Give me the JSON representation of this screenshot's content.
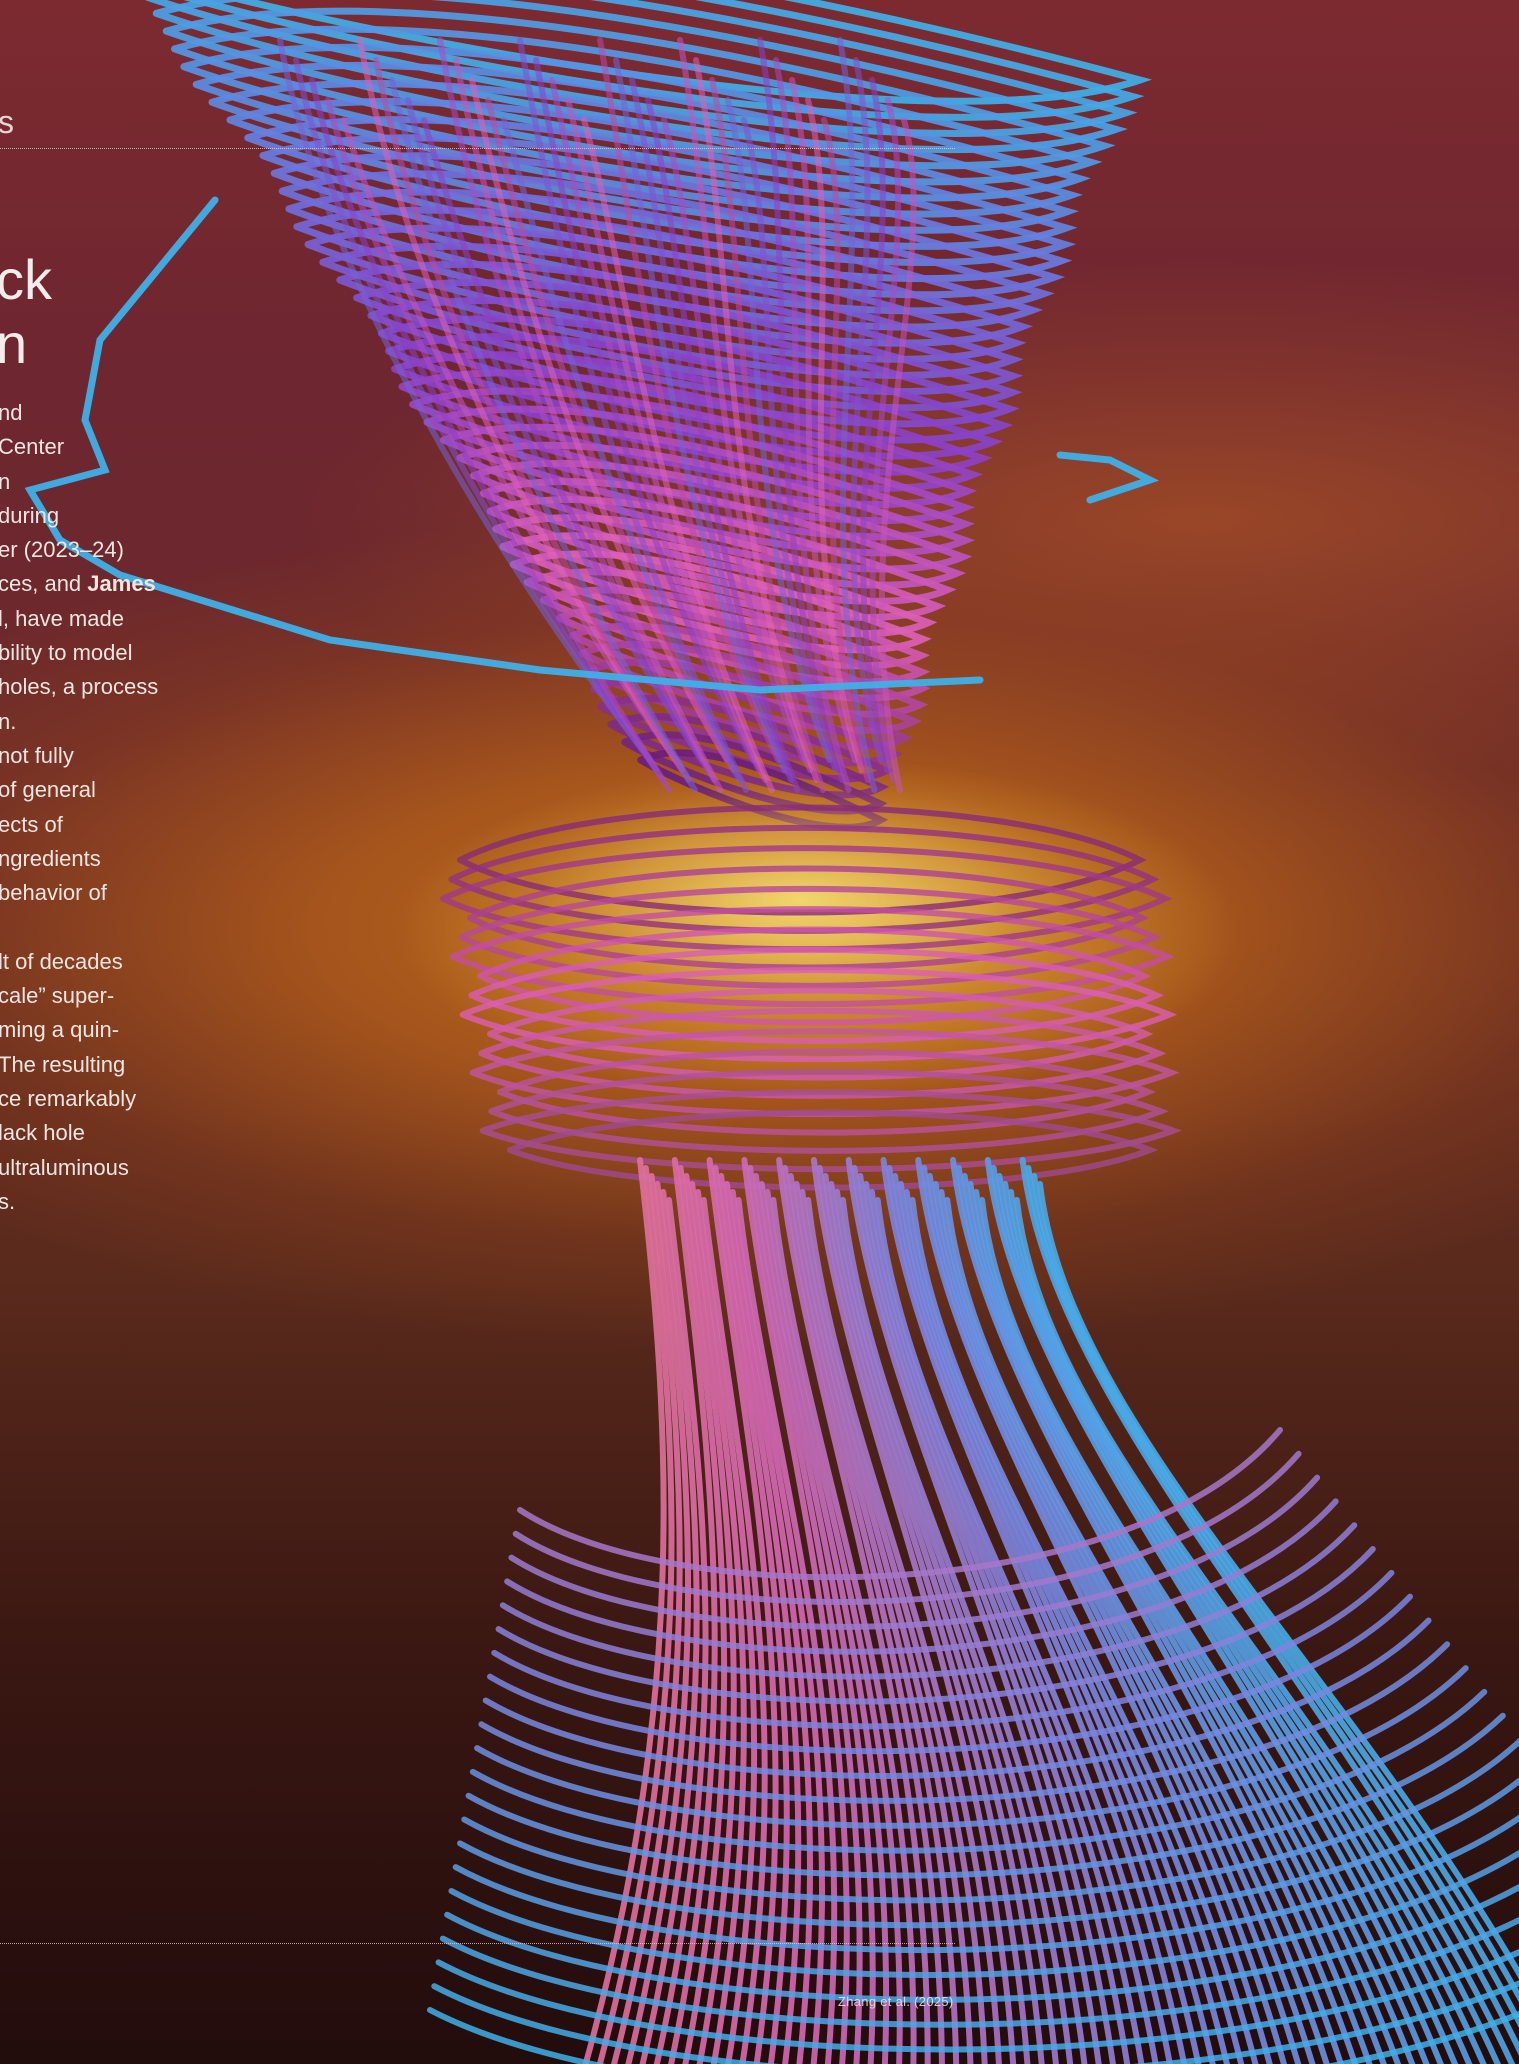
{
  "header": {
    "section_fragment": "s"
  },
  "headline": {
    "line1": "ck",
    "line2": "n"
  },
  "body": {
    "lines": [
      "nd",
      "Center",
      "n",
      "during",
      "er (2023–24)",
      "ces, and ",
      "l, have made",
      "bility to model",
      "holes, a process",
      "n.",
      "not fully",
      "of general",
      "ects of",
      "ngredients",
      "behavior of",
      "lt of decades",
      "cale” super-",
      "ming a quin-",
      " The resulting",
      "ce remarkably",
      "lack hole",
      " ultraluminous",
      "s."
    ],
    "bold_name": "James"
  },
  "credit": {
    "text": "Zhang et al. (2025)"
  },
  "colors": {
    "background_top": "#7c2a30",
    "disk_glow": "#c4701c",
    "disk_core": "#f0cd5f",
    "field_blue": "#3fb0e8",
    "field_purple": "#8a3fc8",
    "field_pink": "#e060b8",
    "field_salmon": "#e8788a"
  }
}
